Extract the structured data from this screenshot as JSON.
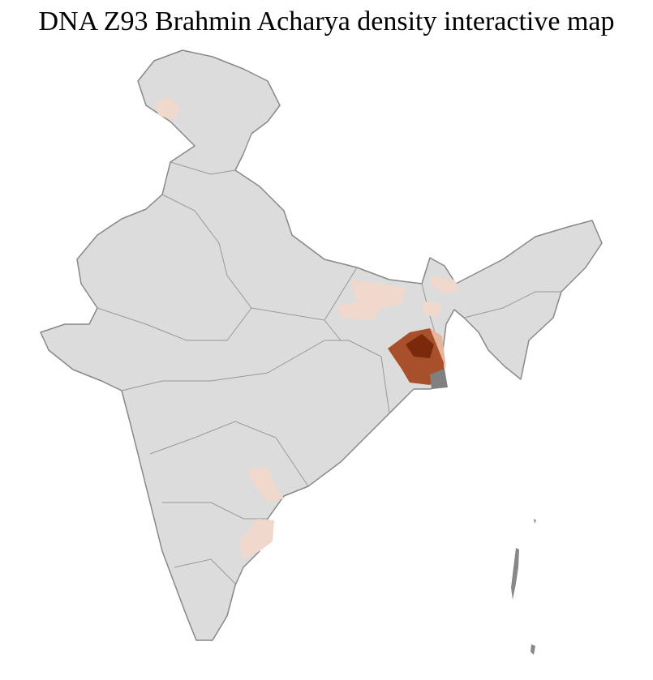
{
  "title": "DNA Z93 Brahmin Acharya density interactive map"
}
